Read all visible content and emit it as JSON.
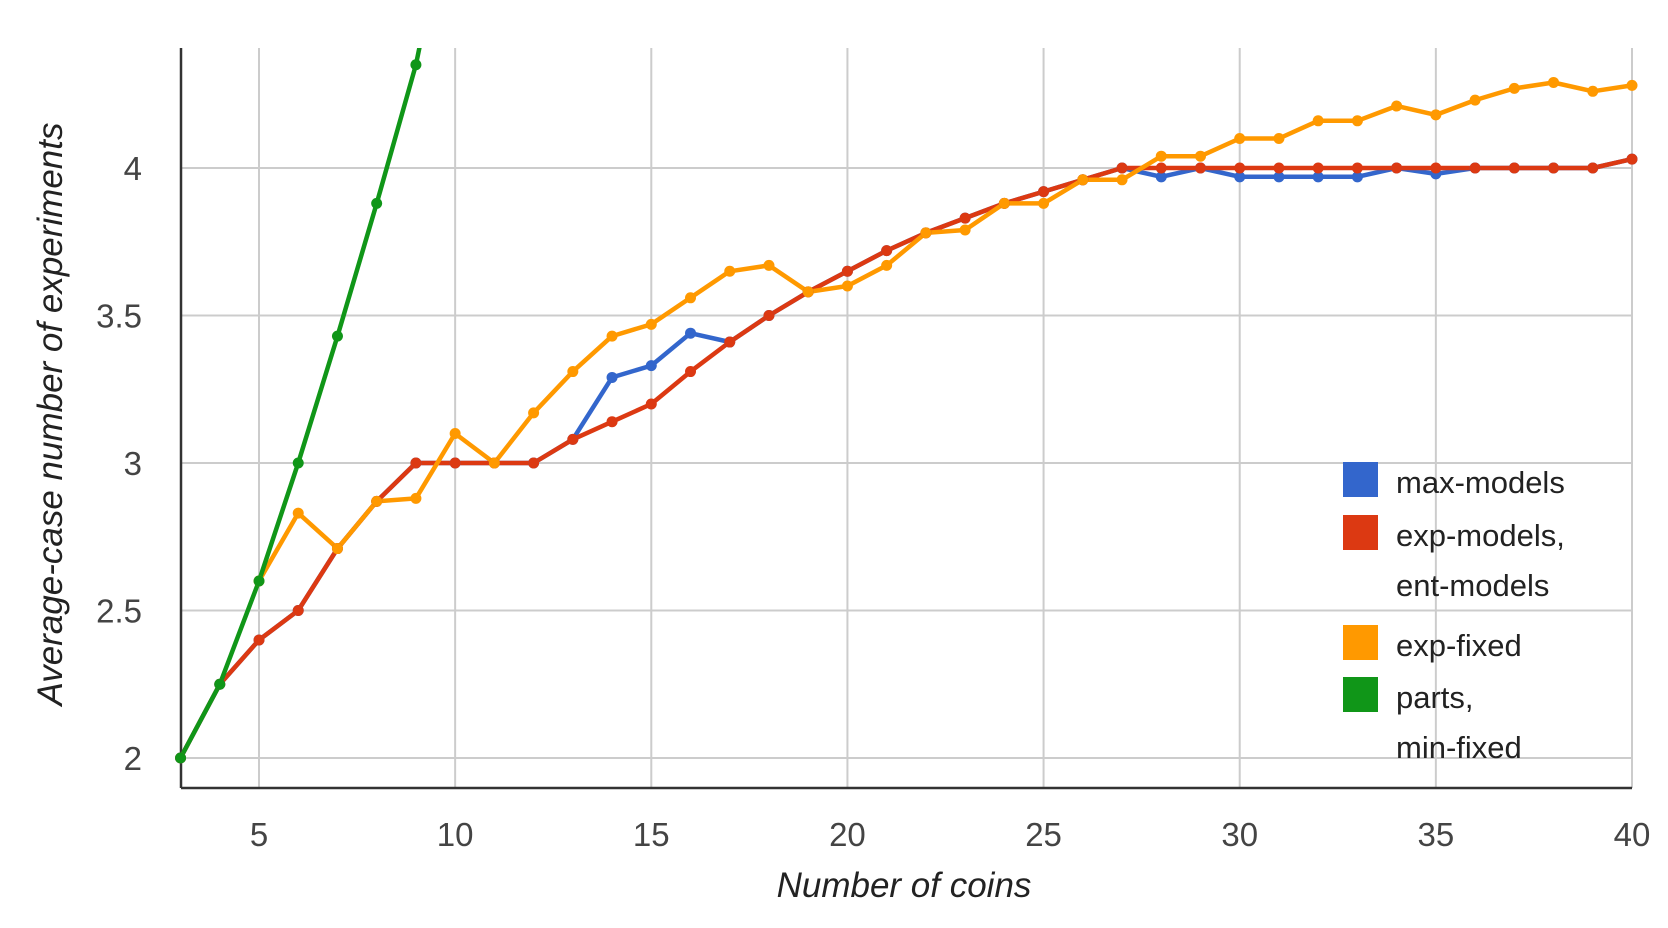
{
  "chart_data": {
    "type": "line",
    "xlabel": "Number of coins",
    "ylabel": "Average-case number of experiments",
    "xlim": [
      3,
      40
    ],
    "ylim": [
      1.95,
      4.4
    ],
    "xticks": [
      5,
      10,
      15,
      20,
      25,
      30,
      35,
      40
    ],
    "yticks": [
      2,
      2.5,
      3,
      3.5,
      4
    ],
    "ytick_labels": [
      "2",
      "2.5",
      "3",
      "3.5",
      "4"
    ],
    "grid": true,
    "legend_position": "bottom-right",
    "series": [
      {
        "name": "max-models",
        "color": "#3366cc",
        "x": [
          3,
          4,
          5,
          6,
          7,
          8,
          9,
          10,
          11,
          12,
          13,
          14,
          15,
          16,
          17,
          18,
          19,
          20,
          21,
          22,
          23,
          24,
          25,
          26,
          27,
          28,
          29,
          30,
          31,
          32,
          33,
          34,
          35,
          36,
          37,
          38,
          39,
          40
        ],
        "values": [
          2.0,
          2.25,
          2.4,
          2.5,
          2.71,
          2.87,
          3.0,
          3.0,
          3.0,
          3.0,
          3.08,
          3.29,
          3.33,
          3.44,
          3.41,
          3.5,
          3.58,
          3.65,
          3.72,
          3.78,
          3.83,
          3.88,
          3.92,
          3.96,
          4.0,
          3.97,
          4.0,
          3.97,
          3.97,
          3.97,
          3.97,
          4.0,
          3.98,
          4.0,
          4.0,
          4.0,
          4.0,
          4.03
        ]
      },
      {
        "name": "exp-models, ent-models",
        "color": "#dc3912",
        "x": [
          3,
          4,
          5,
          6,
          7,
          8,
          9,
          10,
          11,
          12,
          13,
          14,
          15,
          16,
          17,
          18,
          19,
          20,
          21,
          22,
          23,
          24,
          25,
          26,
          27,
          28,
          29,
          30,
          31,
          32,
          33,
          34,
          35,
          36,
          37,
          38,
          39,
          40
        ],
        "values": [
          2.0,
          2.25,
          2.4,
          2.5,
          2.71,
          2.87,
          3.0,
          3.0,
          3.0,
          3.0,
          3.08,
          3.14,
          3.2,
          3.31,
          3.41,
          3.5,
          3.58,
          3.65,
          3.72,
          3.78,
          3.83,
          3.88,
          3.92,
          3.96,
          4.0,
          4.0,
          4.0,
          4.0,
          4.0,
          4.0,
          4.0,
          4.0,
          4.0,
          4.0,
          4.0,
          4.0,
          4.0,
          4.03
        ]
      },
      {
        "name": "exp-fixed",
        "color": "#ff9900",
        "x": [
          5,
          6,
          7,
          8,
          9,
          10,
          11,
          12,
          13,
          14,
          15,
          16,
          17,
          18,
          19,
          20,
          21,
          22,
          23,
          24,
          25,
          26,
          27,
          28,
          29,
          30,
          31,
          32,
          33,
          34,
          35,
          36,
          37,
          38,
          39,
          40
        ],
        "values": [
          2.6,
          2.83,
          2.71,
          2.87,
          2.88,
          3.1,
          3.0,
          3.17,
          3.31,
          3.43,
          3.47,
          3.56,
          3.65,
          3.67,
          3.58,
          3.6,
          3.67,
          3.78,
          3.79,
          3.88,
          3.88,
          3.96,
          3.96,
          4.04,
          4.04,
          4.1,
          4.1,
          4.16,
          4.16,
          4.21,
          4.18,
          4.23,
          4.27,
          4.29,
          4.26,
          4.28
        ]
      },
      {
        "name": "parts, min-fixed",
        "color": "#109618",
        "x": [
          3,
          4,
          5,
          6,
          7,
          8,
          9,
          9.2
        ],
        "values": [
          2.0,
          2.25,
          2.6,
          3.0,
          3.43,
          3.88,
          4.35,
          4.48
        ]
      }
    ]
  },
  "legend": [
    {
      "lines": [
        "max-models"
      ],
      "color": "#3366cc"
    },
    {
      "lines": [
        "exp-models,",
        "ent-models"
      ],
      "color": "#dc3912"
    },
    {
      "lines": [
        "exp-fixed"
      ],
      "color": "#ff9900"
    },
    {
      "lines": [
        "parts,",
        "min-fixed"
      ],
      "color": "#109618"
    }
  ]
}
